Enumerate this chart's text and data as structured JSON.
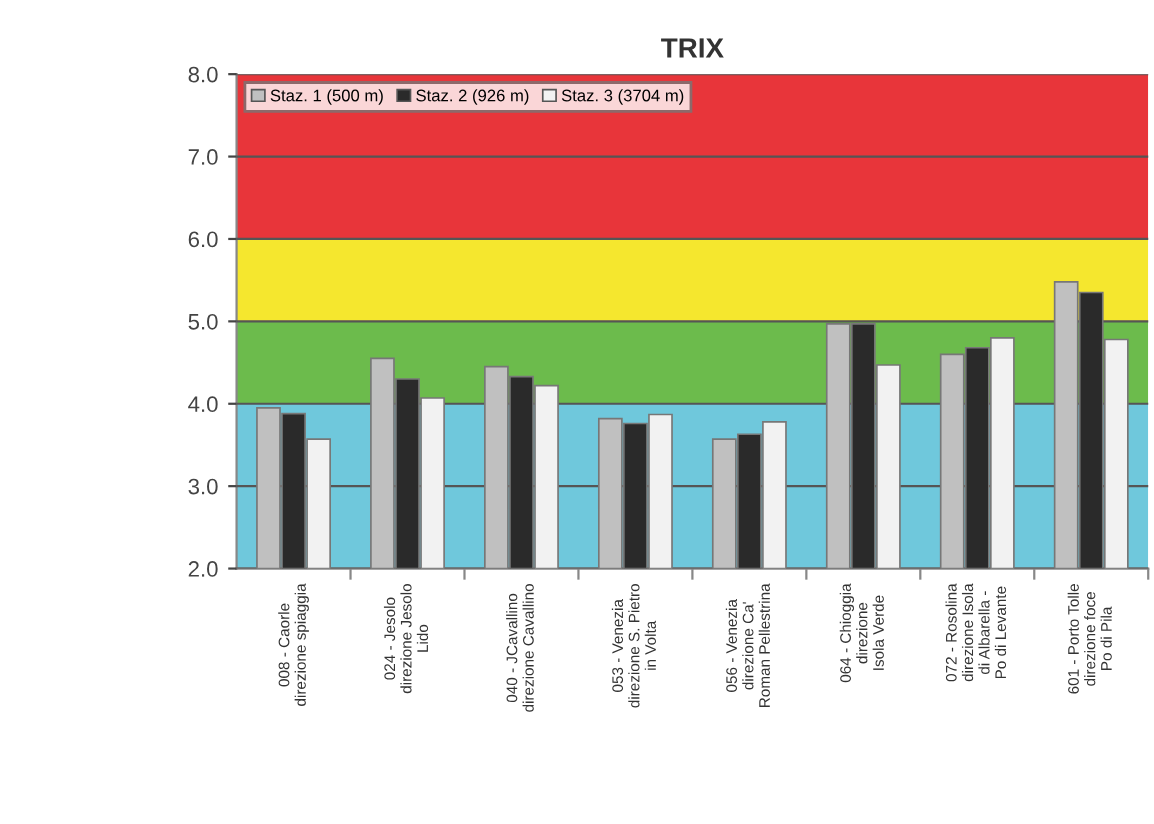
{
  "chart_data": {
    "type": "bar",
    "title": "TRIX",
    "categories": [
      "008 - Caorle\ndirezione spiaggia",
      "024 - Jesolo\ndirezione Jesolo\nLido",
      "040 - JCavallino\ndirezione Cavallino",
      "053 - Venezia\ndirezione S. Pietro\nin Volta",
      "056 - Venezia\ndirezione Ca'\nRoman Pellestrina",
      "064 - Chioggia\ndirezione\nIsola Verde",
      "072 - Rosolina\ndirezione Isola\ndi Albarella -\nPo di Levante",
      "601 - Porto Tolle\ndirezione foce\nPo di Pila"
    ],
    "series": [
      {
        "name": "Staz. 1 (500 m)",
        "color": "#c0c0c0",
        "values": [
          3.95,
          4.55,
          4.45,
          3.82,
          3.57,
          4.97,
          4.6,
          5.48
        ]
      },
      {
        "name": "Staz. 2 (926 m)",
        "color": "#2a2a2a",
        "values": [
          3.88,
          4.3,
          4.33,
          3.76,
          3.63,
          4.97,
          4.68,
          5.35
        ]
      },
      {
        "name": "Staz. 3 (3704 m)",
        "color": "#f2f2f2",
        "values": [
          3.57,
          4.07,
          4.22,
          3.87,
          3.78,
          4.47,
          4.8,
          4.78
        ]
      }
    ],
    "ylim": [
      2.0,
      8.0
    ],
    "yticks": [
      {
        "value": 2,
        "label": "2.0"
      },
      {
        "value": 3,
        "label": "3.0"
      },
      {
        "value": 4,
        "label": "4.0"
      },
      {
        "value": 5,
        "label": "5.0"
      },
      {
        "value": 6,
        "label": "6.0"
      },
      {
        "value": 7,
        "label": "7.0"
      },
      {
        "value": 8,
        "label": "8.0"
      }
    ],
    "bands": [
      {
        "axis": "y",
        "from": 2.0,
        "to": 4.0,
        "color": "#6fc8dc"
      },
      {
        "axis": "y",
        "from": 4.0,
        "to": 5.0,
        "color": "#6cbb4c"
      },
      {
        "axis": "y",
        "from": 5.0,
        "to": 6.0,
        "color": "#f5e72e"
      },
      {
        "axis": "y",
        "from": 6.0,
        "to": 8.0,
        "color": "#e8353a"
      }
    ],
    "grid": "y",
    "legend": "top left"
  }
}
